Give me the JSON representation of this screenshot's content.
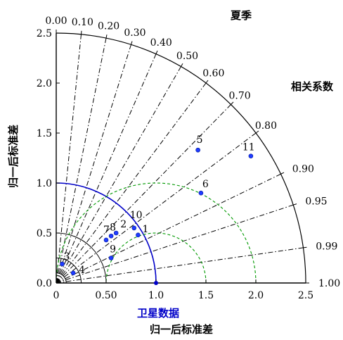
{
  "chart_data": {
    "type": "scatter",
    "subtype": "taylor-diagram",
    "title": "夏季",
    "xlabel": "归一后标准差",
    "ylabel": "归一后标准差",
    "correlation_label": "相关系数",
    "reference_label": "卫星数据",
    "std_range": [
      0,
      2.5
    ],
    "std_ticks": [
      "0.0",
      "0.50",
      "1.0",
      "1.5",
      "2.0",
      "2.5"
    ],
    "y_std_ticks": [
      "0.0",
      "0.5",
      "1.0",
      "1.5",
      "2.0",
      "2.5"
    ],
    "x_std_ticks": [
      "0",
      "0.50",
      "1.0",
      "1.5",
      "2.0",
      "2.5"
    ],
    "correlation_ticks": [
      "0.00",
      "0.10",
      "0.20",
      "0.30",
      "0.40",
      "0.50",
      "0.60",
      "0.70",
      "0.80",
      "0.90",
      "0.95",
      "0.99",
      "1.00"
    ],
    "reference_std": 1.0,
    "rmsd_contours": [
      0.5,
      1.0
    ],
    "colors": {
      "points": "#1f3bff",
      "reference": "#0000c8",
      "rmsd": "#009900",
      "axes": "#000000"
    },
    "points": [
      {
        "label": "1",
        "x": 0.82,
        "y": 0.48
      },
      {
        "label": "2",
        "x": 0.6,
        "y": 0.5
      },
      {
        "label": "3",
        "x": 0.06,
        "y": 0.19
      },
      {
        "label": "4",
        "x": 0.17,
        "y": 0.1
      },
      {
        "label": "5",
        "x": 1.42,
        "y": 1.33
      },
      {
        "label": "6",
        "x": 1.45,
        "y": 0.9
      },
      {
        "label": "7",
        "x": 0.5,
        "y": 0.43
      },
      {
        "label": "8",
        "x": 0.55,
        "y": 0.47
      },
      {
        "label": "9",
        "x": 0.55,
        "y": 0.25
      },
      {
        "label": "10",
        "x": 0.78,
        "y": 0.55
      },
      {
        "label": "11",
        "x": 1.95,
        "y": 1.27
      }
    ]
  }
}
